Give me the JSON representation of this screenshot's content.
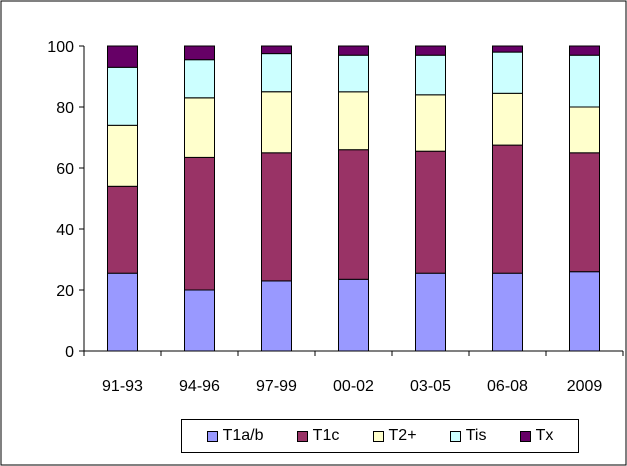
{
  "chart_data": {
    "type": "bar",
    "stacked": true,
    "categories": [
      "91-93",
      "94-96",
      "97-99",
      "00-02",
      "03-05",
      "06-08",
      "2009"
    ],
    "series": [
      {
        "name": "T1a/b",
        "color": "#9999ff",
        "values": [
          25.5,
          20,
          23,
          23.5,
          25.5,
          25.5,
          26
        ]
      },
      {
        "name": "T1c",
        "color": "#993366",
        "values": [
          28.5,
          43.5,
          42,
          42.5,
          40,
          42,
          39
        ]
      },
      {
        "name": "T2+",
        "color": "#ffffcc",
        "values": [
          20,
          19.5,
          20,
          19,
          18.5,
          17,
          15
        ]
      },
      {
        "name": "Tis",
        "color": "#ccffff",
        "values": [
          19,
          12.5,
          12.5,
          12,
          13,
          13.5,
          17
        ]
      },
      {
        "name": "Tx",
        "color": "#660066",
        "values": [
          7,
          4.5,
          2.5,
          3,
          3,
          2,
          3
        ]
      }
    ],
    "y_ticks": [
      "0",
      "20",
      "40",
      "60",
      "80",
      "100"
    ],
    "ylim": [
      0,
      100
    ],
    "grid": false,
    "legend_position": "bottom"
  }
}
